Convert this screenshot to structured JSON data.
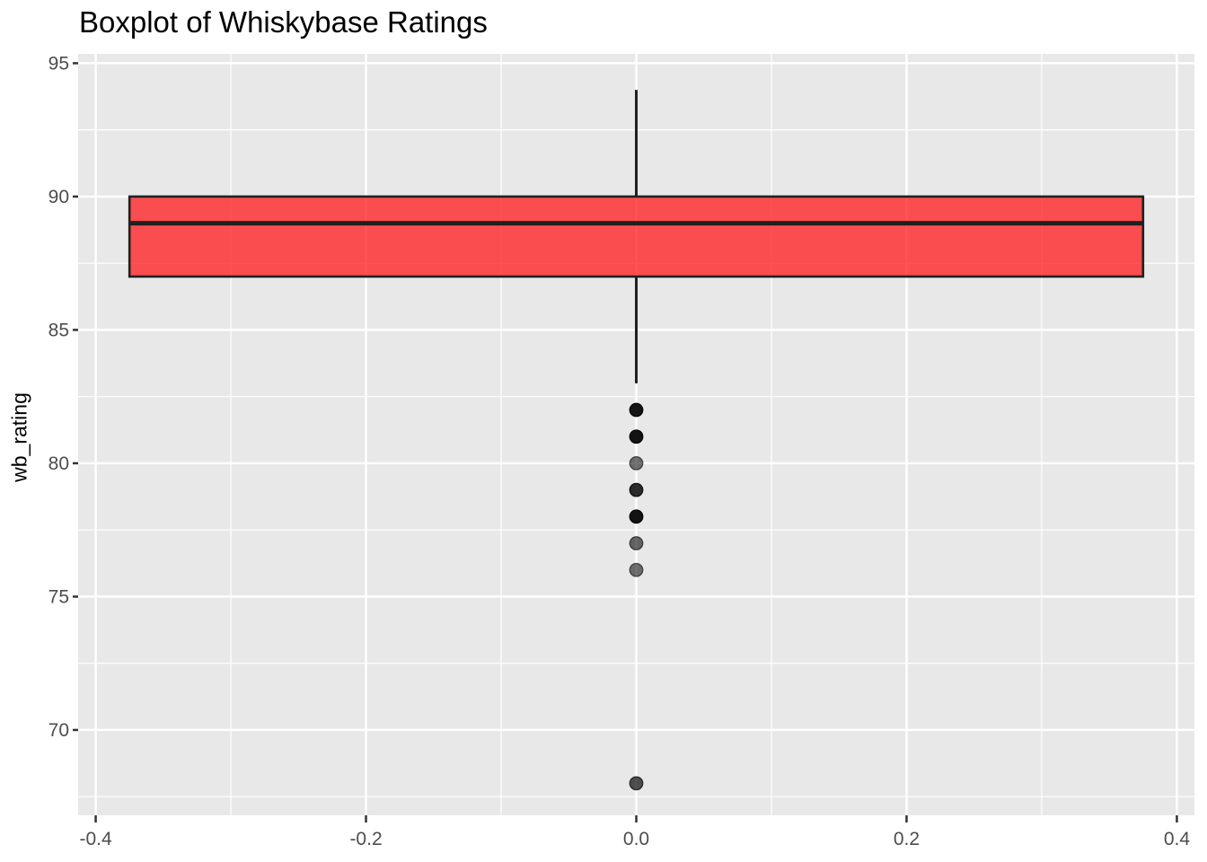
{
  "title": "Boxplot of Whiskybase Ratings",
  "chart_data": {
    "type": "boxplot",
    "title": "Boxplot of Whiskybase Ratings",
    "xlabel": "",
    "ylabel": "wb_rating",
    "series_name": "wb_rating",
    "grid": true,
    "legend": "none",
    "x_center": 0,
    "box_width": 0.75,
    "stats": {
      "whisker_low": 83,
      "q1": 87,
      "median": 89,
      "q3": 90,
      "whisker_high": 94
    },
    "outliers": [
      82,
      81,
      80,
      79,
      78,
      77,
      76,
      68
    ],
    "outlier_alphas": [
      0.92,
      0.92,
      0.55,
      0.82,
      0.92,
      0.58,
      0.55,
      0.68
    ],
    "x_tick_labels": [
      "-0.4",
      "-0.2",
      "0.0",
      "0.2",
      "0.4"
    ],
    "x_tick_values": [
      -0.4,
      -0.2,
      0.0,
      0.2,
      0.4
    ],
    "y_tick_labels": [
      "95",
      "90",
      "85",
      "80",
      "75",
      "70"
    ],
    "y_tick_values": [
      95,
      90,
      85,
      80,
      75,
      70
    ],
    "x_minor_values": [
      -0.3,
      -0.1,
      0.1,
      0.3
    ],
    "y_minor_values": [
      92.5,
      87.5,
      82.5,
      77.5,
      72.5,
      67.5
    ],
    "xlim": [
      -0.413,
      0.413
    ],
    "ylim": [
      66.8,
      95.35
    ],
    "colors": {
      "box_fill": "rgba(255, 16, 20, 0.72)",
      "box_stroke": "#202020",
      "whisker": "#202020",
      "outlier": "#000000",
      "panel_bg": "#E8E8E8",
      "grid_major": "#FFFFFF",
      "grid_minor": "#FFFFFF",
      "tick_mark": "#333333",
      "tick_label": "#4D4D4D",
      "title": "#000000"
    }
  }
}
